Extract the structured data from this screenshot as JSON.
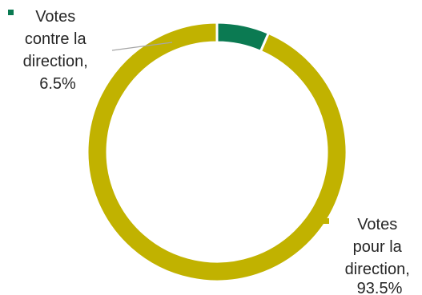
{
  "chart_data": {
    "type": "pie",
    "variant": "donut",
    "slices": [
      {
        "label_lines": [
          "Votes",
          "pour la",
          "direction,",
          "93.5%"
        ],
        "value": 93.5,
        "color": "#C1B200"
      },
      {
        "label_lines": [
          "Votes",
          "contre la",
          "direction,",
          "6.5%"
        ],
        "value": 6.5,
        "color": "#0B7A52"
      }
    ],
    "legend": "none",
    "leader_line_color": "#A6A6A6"
  }
}
